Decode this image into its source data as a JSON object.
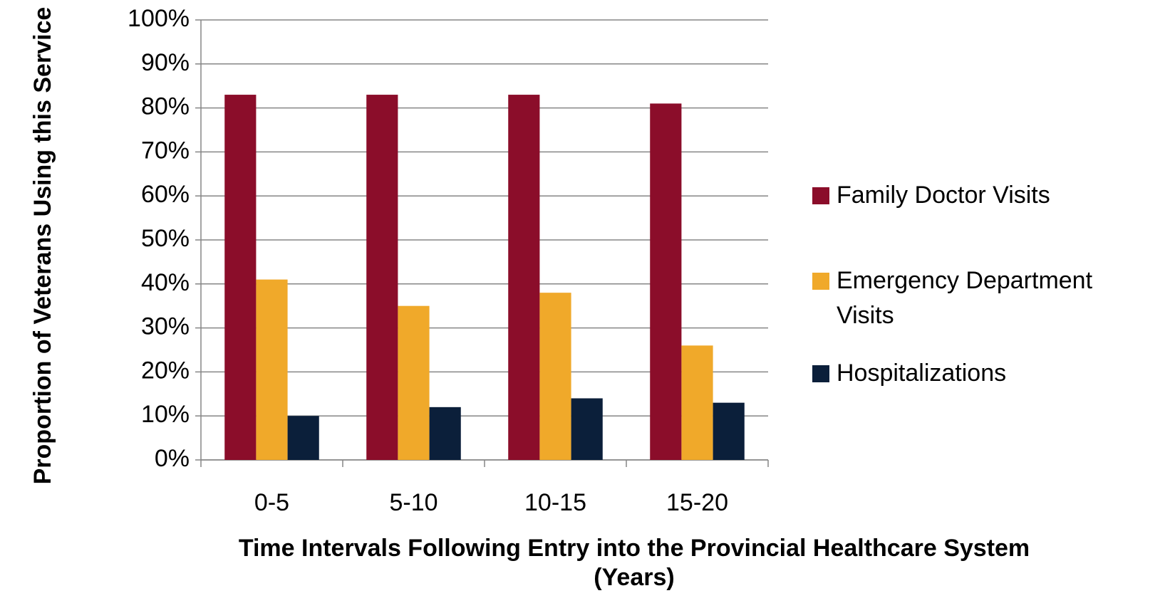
{
  "chart_data": {
    "type": "bar",
    "x_label": "Time Intervals Following Entry into the Provincial Healthcare System (Years)",
    "y_label": "Proportion of Veterans Using this Service",
    "categories": [
      "0-5",
      "5-10",
      "10-15",
      "15-20"
    ],
    "series": [
      {
        "name": "Family Doctor Visits",
        "color": "#8b0d2a",
        "values": [
          83,
          83,
          83,
          81
        ]
      },
      {
        "name": "Emergency Department Visits",
        "color": "#f0a92a",
        "values": [
          41,
          35,
          38,
          26
        ]
      },
      {
        "name": "Hospitalizations",
        "color": "#0b1f3a",
        "values": [
          10,
          12,
          14,
          13
        ]
      }
    ],
    "ylim": [
      0,
      100
    ],
    "yticks": [
      {
        "value": 0,
        "label": "0%"
      },
      {
        "value": 10,
        "label": "10%"
      },
      {
        "value": 20,
        "label": "20%"
      },
      {
        "value": 30,
        "label": "30%"
      },
      {
        "value": 40,
        "label": "40%"
      },
      {
        "value": 50,
        "label": "50%"
      },
      {
        "value": 60,
        "label": "60%"
      },
      {
        "value": 70,
        "label": "70%"
      },
      {
        "value": 80,
        "label": "80%"
      },
      {
        "value": 90,
        "label": "90%"
      },
      {
        "value": 100,
        "label": "100%"
      }
    ],
    "grid": true,
    "legend": "right"
  }
}
